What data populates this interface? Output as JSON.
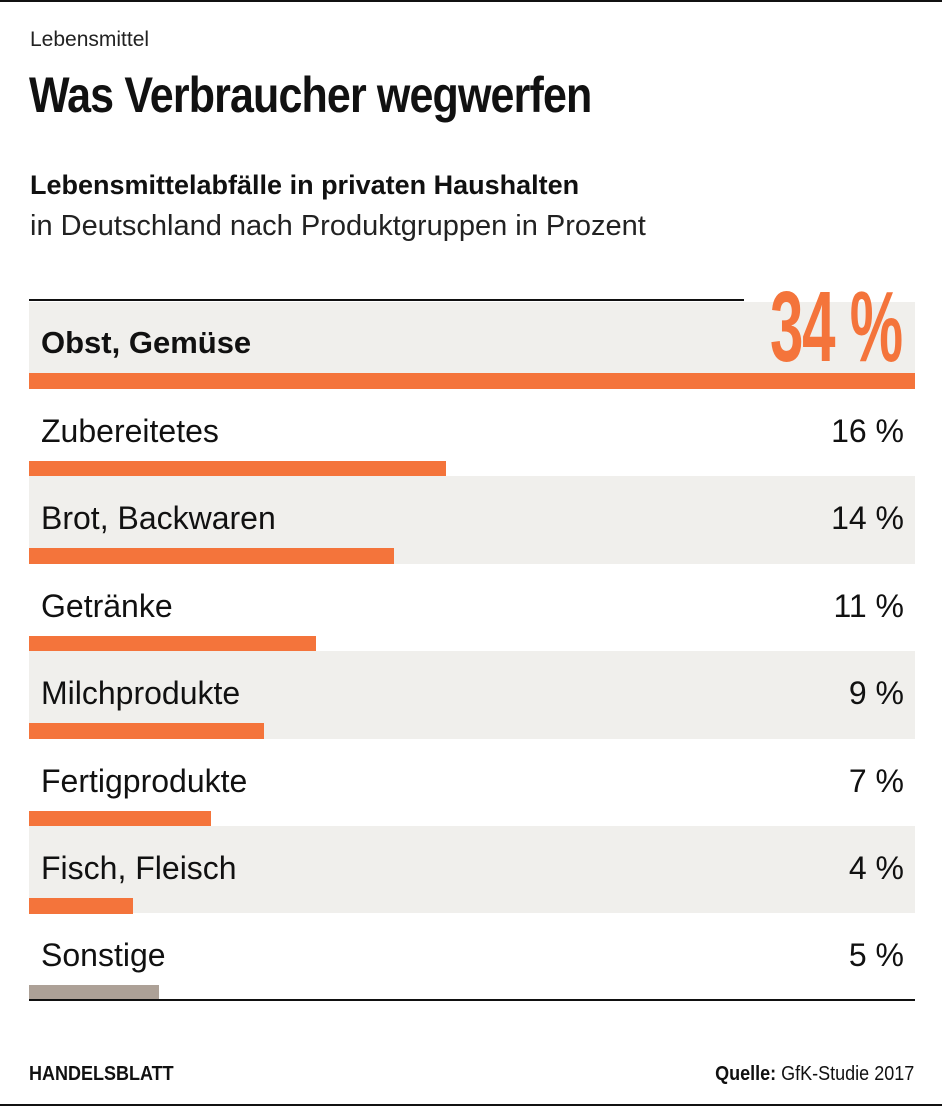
{
  "kicker": "Lebensmittel",
  "title": "Was Verbraucher wegwerfen",
  "subtitle": "Lebensmittelabfälle in privaten Haushalten",
  "subtitle2": "in Deutschland nach Produktgruppen in Prozent",
  "footer": {
    "brand": "HANDELSBLATT",
    "source_label": "Quelle:",
    "source": "GfK-Studie 2017"
  },
  "colors": {
    "accent": "#f4743b",
    "other": "#ada197",
    "band": "#f0efec"
  },
  "chart_data": {
    "type": "bar",
    "orientation": "horizontal",
    "categories": [
      "Obst, Gemüse",
      "Zubereitetes",
      "Brot, Backwaren",
      "Getränke",
      "Milchprodukte",
      "Fertigprodukte",
      "Fisch, Fleisch",
      "Sonstige"
    ],
    "values": [
      34,
      16,
      14,
      11,
      9,
      7,
      4,
      5
    ],
    "labels": [
      "34 %",
      "16 %",
      "14 %",
      "11 %",
      "9 %",
      "7 %",
      "4 %",
      "5 %"
    ],
    "unit": "%",
    "xlim": [
      0,
      34
    ],
    "grid": false
  }
}
